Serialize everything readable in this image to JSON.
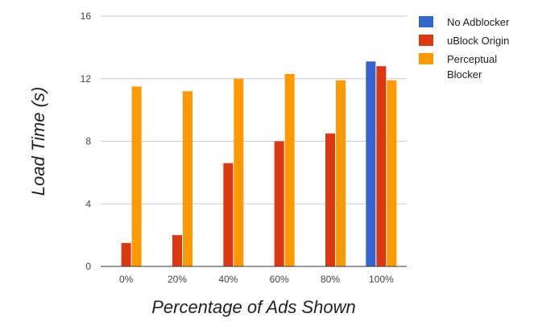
{
  "chart_data": {
    "type": "bar",
    "title": "",
    "xlabel": "Percentage of Ads Shown",
    "ylabel": "Load Time (s)",
    "categories": [
      "0%",
      "20%",
      "40%",
      "60%",
      "80%",
      "100%"
    ],
    "ylim": [
      0,
      16
    ],
    "yticks": [
      "0",
      "4",
      "8",
      "12",
      "16"
    ],
    "grid": true,
    "legend_position": "right",
    "series": [
      {
        "name": "No Adblocker",
        "color": "#3366cc",
        "values": [
          0,
          0,
          0,
          0,
          0,
          13.1
        ]
      },
      {
        "name": "uBlock Origin",
        "color": "#dc3912",
        "values": [
          1.5,
          2.0,
          6.6,
          8.0,
          8.5,
          12.8
        ]
      },
      {
        "name": "Perceptual Blocker",
        "legend_lines": [
          "Perceptual",
          "Blocker"
        ],
        "color": "#ff9900",
        "values": [
          11.5,
          11.2,
          12.0,
          12.3,
          11.9,
          11.9
        ]
      }
    ]
  }
}
